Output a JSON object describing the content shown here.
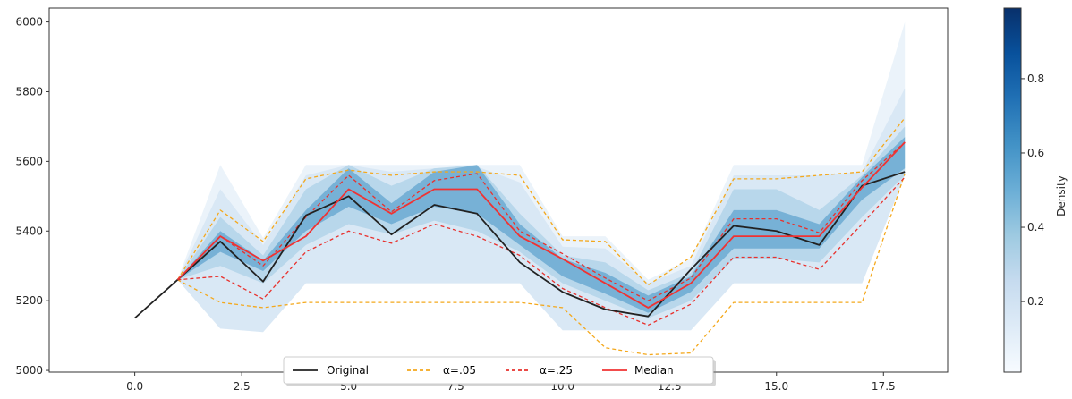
{
  "chart_data": {
    "type": "line",
    "title": "",
    "xlabel": "",
    "ylabel": "",
    "xlim": [
      -2.0,
      19.0
    ],
    "ylim": [
      4995,
      6040
    ],
    "x_ticks": [
      0.0,
      2.5,
      5.0,
      7.5,
      10.0,
      12.5,
      15.0,
      17.5
    ],
    "x_tick_labels": [
      "0.0",
      "2.5",
      "5.0",
      "7.5",
      "10.0",
      "12.5",
      "15.0",
      "17.5"
    ],
    "y_ticks": [
      5000,
      5200,
      5400,
      5600,
      5800,
      6000
    ],
    "y_tick_labels": [
      "5000",
      "5200",
      "5400",
      "5600",
      "5800",
      "6000"
    ],
    "grid": false,
    "legend_position": "bottom-center",
    "x": [
      0,
      1,
      2,
      3,
      4,
      5,
      6,
      7,
      8,
      9,
      10,
      11,
      12,
      13,
      14,
      15,
      16,
      17,
      18
    ],
    "series": [
      {
        "name": "Original",
        "style": "solid",
        "color": "#222222",
        "values": [
          5150,
          5260,
          5370,
          5255,
          5445,
          5500,
          5390,
          5475,
          5450,
          5310,
          5225,
          5175,
          5155,
          5290,
          5415,
          5400,
          5360,
          5530,
          5570
        ]
      },
      {
        "name": "α=.05",
        "style": "dashed",
        "color": "#f4a81c",
        "upper": [
          null,
          5260,
          5460,
          5370,
          5550,
          5575,
          5560,
          5570,
          5570,
          5560,
          5375,
          5370,
          5245,
          5325,
          5550,
          5550,
          5560,
          5570,
          5725
        ],
        "lower": [
          null,
          5260,
          5195,
          5180,
          5195,
          5195,
          5195,
          5195,
          5195,
          5195,
          5180,
          5065,
          5045,
          5050,
          5195,
          5195,
          5195,
          5195,
          5565
        ]
      },
      {
        "name": "α=.25",
        "style": "dashed",
        "color": "#e8312d",
        "upper": [
          null,
          5260,
          5385,
          5300,
          5440,
          5560,
          5455,
          5545,
          5565,
          5400,
          5335,
          5265,
          5200,
          5265,
          5435,
          5435,
          5395,
          5545,
          5655
        ],
        "lower": [
          null,
          5260,
          5270,
          5205,
          5340,
          5400,
          5365,
          5420,
          5385,
          5330,
          5235,
          5180,
          5130,
          5190,
          5325,
          5325,
          5290,
          5420,
          5555
        ]
      },
      {
        "name": "Median",
        "style": "solid",
        "color": "#f03232",
        "values": [
          null,
          5260,
          5385,
          5315,
          5385,
          5520,
          5450,
          5520,
          5520,
          5385,
          5320,
          5250,
          5180,
          5250,
          5385,
          5385,
          5385,
          5525,
          5655
        ]
      }
    ],
    "density_bands": [
      {
        "density": 0.06,
        "upper": [
          null,
          5260,
          5590,
          5380,
          5590,
          5590,
          5590,
          5590,
          5590,
          5590,
          5385,
          5385,
          5260,
          5320,
          5590,
          5590,
          5590,
          5590,
          6000
        ],
        "lower": [
          null,
          5260,
          5120,
          5110,
          5250,
          5250,
          5250,
          5250,
          5250,
          5250,
          5115,
          5115,
          5115,
          5115,
          5250,
          5250,
          5250,
          5250,
          5560
        ]
      },
      {
        "density": 0.15,
        "upper": [
          null,
          5260,
          5520,
          5360,
          5560,
          5590,
          5570,
          5580,
          5585,
          5540,
          5355,
          5350,
          5250,
          5300,
          5560,
          5560,
          5560,
          5570,
          5810
        ]
      },
      {
        "density": 0.3,
        "upper": [
          null,
          5260,
          5440,
          5330,
          5520,
          5590,
          5530,
          5580,
          5590,
          5450,
          5330,
          5310,
          5230,
          5280,
          5520,
          5520,
          5460,
          5560,
          5700
        ],
        "lower": [
          null,
          5260,
          5300,
          5250,
          5360,
          5420,
          5390,
          5430,
          5400,
          5340,
          5250,
          5200,
          5150,
          5200,
          5320,
          5320,
          5310,
          5440,
          5560
        ]
      },
      {
        "density": 0.55,
        "upper": [
          null,
          5260,
          5400,
          5315,
          5460,
          5580,
          5480,
          5570,
          5590,
          5420,
          5320,
          5280,
          5215,
          5270,
          5460,
          5460,
          5420,
          5555,
          5670
        ],
        "lower": [
          null,
          5260,
          5340,
          5285,
          5400,
          5470,
          5420,
          5470,
          5450,
          5360,
          5270,
          5220,
          5165,
          5225,
          5350,
          5350,
          5350,
          5490,
          5580
        ]
      }
    ],
    "colorbar": {
      "label": "Density",
      "range": [
        0.01,
        0.99
      ],
      "ticks": [
        0.2,
        0.4,
        0.6,
        0.8
      ],
      "tick_labels": [
        "0.2",
        "0.4",
        "0.6",
        "0.8"
      ],
      "colormap": "Blues",
      "colors": [
        "#f7fbff",
        "#deebf7",
        "#c6dbef",
        "#9ecae1",
        "#6baed6",
        "#4292c6",
        "#2171b5",
        "#08519c",
        "#08306b"
      ]
    }
  }
}
